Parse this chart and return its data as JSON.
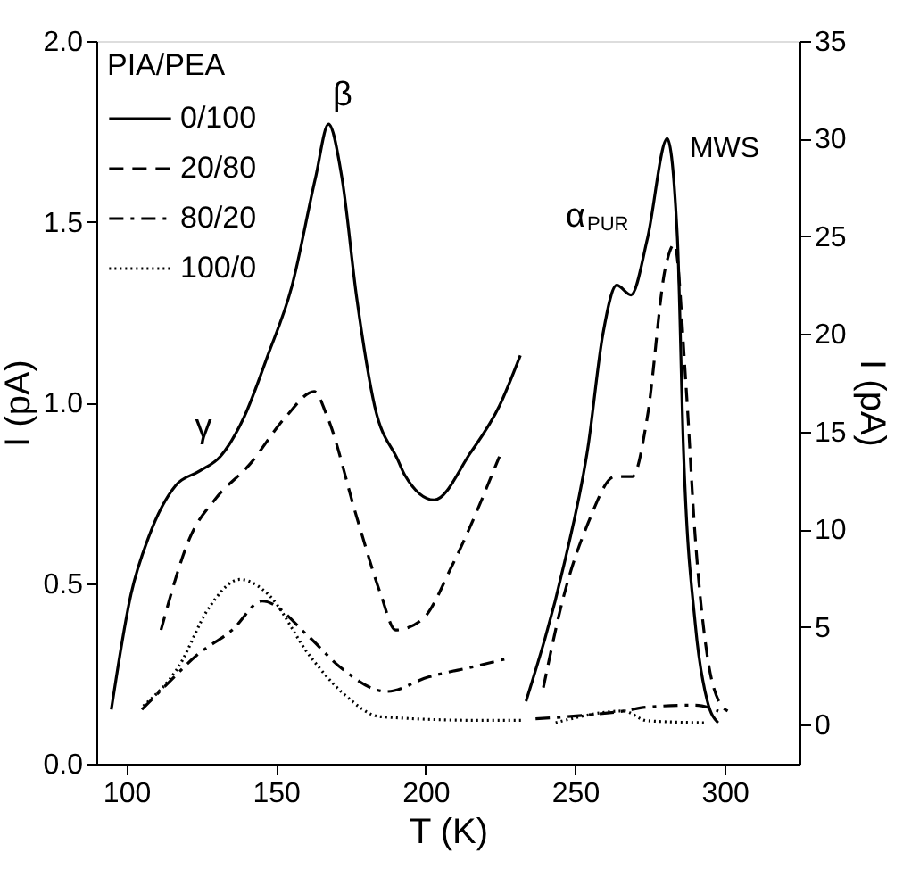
{
  "chart_data": {
    "type": "line",
    "xlabel": "T (K)",
    "ylabel": "I (pA)",
    "y2label": "I (pA)",
    "legend_title": "PIA/PEA",
    "legend": "top left",
    "grid": false,
    "xlim": [
      90,
      325
    ],
    "xticks": [
      100,
      150,
      200,
      250,
      300
    ],
    "ylim": [
      0,
      2
    ],
    "yticks": [
      {
        "value": 0,
        "label": "0.0"
      },
      {
        "value": 0.5,
        "label": "0.5"
      },
      {
        "value": 1,
        "label": "1.0"
      },
      {
        "value": 1.5,
        "label": "1.5"
      },
      {
        "value": 2,
        "label": "2.0"
      }
    ],
    "y2lim": [
      -2,
      35
    ],
    "y2ticks": [
      0,
      5,
      10,
      15,
      20,
      25,
      30,
      35
    ],
    "annotations": [
      "γ",
      "β",
      "α$_{PUR}$",
      "MWS"
    ],
    "series": [
      {
        "name": "0/100",
        "color": "#000000",
        "line_style": "solid",
        "x": [
          95,
          101.6,
          107.6,
          116.5,
          124.5,
          131.4,
          139.4,
          147.3,
          155.3,
          163.2,
          167.6,
          172.1,
          177,
          183,
          190.8,
          193,
          202.9,
          215,
          224.7,
          231.7
        ],
        "values": [
          0.15,
          0.47,
          0.63,
          0.77,
          0.81,
          0.85,
          0.96,
          1.13,
          1.32,
          1.62,
          1.77,
          1.62,
          1.29,
          0.99,
          0.84,
          0.8,
          0.73,
          0.86,
          0.99,
          1.13
        ]
      },
      {
        "name": "20/80",
        "color": "#000000",
        "line_style": "dashed",
        "x": [
          111.6,
          121.5,
          129.5,
          141.4,
          153.3,
          162.8,
          167.2,
          177.1,
          185,
          190,
          199,
          209,
          224.7
        ],
        "values": [
          0.37,
          0.63,
          0.73,
          0.83,
          0.96,
          1.03,
          0.96,
          0.68,
          0.47,
          0.37,
          0.4,
          0.55,
          0.85
        ]
      },
      {
        "name": "80/20",
        "color": "#000000",
        "line_style": "dashdot",
        "x": [
          105.2,
          113.6,
          123.5,
          135.4,
          145.4,
          161.2,
          171.1,
          187,
          201,
          216.9,
          226.7
        ],
        "values": [
          0.15,
          0.22,
          0.3,
          0.37,
          0.45,
          0.35,
          0.27,
          0.2,
          0.24,
          0.27,
          0.29
        ]
      },
      {
        "name": "100/0",
        "color": "#000000",
        "line_style": "dotted",
        "x": [
          105.7,
          117.6,
          127.5,
          138,
          147.3,
          161.2,
          173.1,
          185,
          218.8,
          232.6
        ],
        "values": [
          0.16,
          0.27,
          0.43,
          0.51,
          0.47,
          0.3,
          0.19,
          0.13,
          0.12,
          0.12
        ]
      },
      {
        "color": "#000000",
        "line_style": "solid",
        "axis": "y2",
        "x": [
          233.6,
          246.3,
          254.3,
          259.3,
          263.9,
          268.7,
          274.2,
          280.8,
          284.2,
          286.2,
          290.2,
          294.2,
          297.8
        ],
        "values": [
          1.2,
          8.2,
          14.2,
          20.0,
          22.5,
          22.0,
          24.9,
          30.0,
          24.9,
          14.2,
          5.1,
          1.2,
          0.1
        ]
      },
      {
        "color": "#000000",
        "line_style": "dashed",
        "axis": "y2",
        "x": [
          239.4,
          246.4,
          254.3,
          263.3,
          269.2,
          274.2,
          280.2,
          283.2,
          287.1,
          290.1,
          294.1,
          298,
          301
        ],
        "values": [
          1.9,
          6.7,
          10.3,
          12.7,
          12.7,
          15.8,
          23.4,
          24.6,
          17.3,
          9.7,
          3.6,
          1.2,
          0.7
        ]
      },
      {
        "color": "#000000",
        "line_style": "dashdot",
        "axis": "y2",
        "x": [
          236.8,
          254.3,
          266.2,
          274,
          290,
          297.9
        ],
        "values": [
          0.3,
          0.5,
          0.7,
          0.9,
          1.0,
          0.7
        ]
      },
      {
        "color": "#000000",
        "line_style": "dotted",
        "axis": "y2",
        "x": [
          243.5,
          266.2,
          274,
          293.1
        ],
        "values": [
          0.1,
          0.7,
          0.2,
          0.1
        ]
      }
    ]
  }
}
